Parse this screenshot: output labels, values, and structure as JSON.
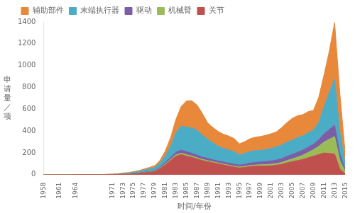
{
  "chart_data": {
    "type": "area",
    "stacked": true,
    "xlabel": "时间/年份",
    "ylabel": "申\n请\n量\n／\n项",
    "x": [
      1958,
      1959,
      1960,
      1961,
      1962,
      1963,
      1964,
      1965,
      1966,
      1967,
      1968,
      1969,
      1970,
      1971,
      1972,
      1973,
      1974,
      1975,
      1976,
      1977,
      1978,
      1979,
      1980,
      1981,
      1982,
      1983,
      1984,
      1985,
      1986,
      1987,
      1988,
      1989,
      1990,
      1991,
      1992,
      1993,
      1994,
      1995,
      1996,
      1997,
      1998,
      1999,
      2000,
      2001,
      2002,
      2003,
      2004,
      2005,
      2006,
      2007,
      2008,
      2009,
      2010,
      2011,
      2012,
      2013,
      2014,
      2015
    ],
    "series": [
      {
        "name": "关节",
        "color": "#C0504D",
        "values": [
          0,
          0,
          0,
          0,
          0,
          0,
          1,
          1,
          1,
          1,
          1,
          1,
          2,
          2,
          3,
          4,
          5,
          8,
          12,
          18,
          22,
          28,
          55,
          90,
          130,
          170,
          185,
          170,
          160,
          145,
          130,
          120,
          110,
          100,
          90,
          80,
          70,
          62,
          68,
          75,
          78,
          80,
          80,
          82,
          88,
          95,
          110,
          120,
          130,
          140,
          155,
          170,
          185,
          200,
          195,
          190,
          50,
          10
        ]
      },
      {
        "name": "机械臂",
        "color": "#9BBB59",
        "values": [
          0,
          0,
          0,
          0,
          0,
          0,
          0,
          0,
          0,
          0,
          0,
          0,
          0,
          0,
          0,
          1,
          1,
          1,
          1,
          2,
          2,
          3,
          4,
          8,
          10,
          12,
          13,
          13,
          12,
          11,
          10,
          10,
          9,
          8,
          8,
          8,
          8,
          8,
          9,
          10,
          11,
          12,
          13,
          14,
          15,
          17,
          20,
          25,
          32,
          40,
          50,
          60,
          75,
          100,
          130,
          160,
          80,
          20
        ]
      },
      {
        "name": "驱动",
        "color": "#7B5EA7",
        "values": [
          0,
          0,
          0,
          0,
          0,
          0,
          0,
          0,
          0,
          0,
          0,
          0,
          0,
          0,
          0,
          1,
          1,
          2,
          2,
          3,
          4,
          5,
          8,
          15,
          20,
          25,
          28,
          28,
          26,
          24,
          22,
          20,
          19,
          18,
          18,
          18,
          19,
          19,
          20,
          22,
          24,
          26,
          28,
          30,
          32,
          35,
          38,
          42,
          44,
          46,
          48,
          50,
          60,
          75,
          90,
          105,
          60,
          20
        ]
      },
      {
        "name": "末端执行器",
        "color": "#4BACC6",
        "values": [
          0,
          0,
          0,
          0,
          0,
          0,
          0,
          0,
          0,
          0,
          0,
          1,
          1,
          2,
          3,
          5,
          8,
          12,
          15,
          20,
          25,
          30,
          40,
          60,
          100,
          180,
          220,
          225,
          230,
          228,
          200,
          175,
          155,
          135,
          125,
          120,
          115,
          92,
          98,
          105,
          108,
          105,
          110,
          115,
          120,
          125,
          130,
          130,
          135,
          130,
          130,
          130,
          160,
          250,
          340,
          420,
          200,
          50
        ]
      },
      {
        "name": "辅助部件",
        "color": "#E8883A",
        "values": [
          0,
          0,
          0,
          0,
          0,
          0,
          0,
          0,
          0,
          0,
          0,
          0,
          1,
          2,
          3,
          4,
          5,
          6,
          8,
          10,
          14,
          18,
          25,
          45,
          80,
          120,
          180,
          240,
          250,
          230,
          200,
          150,
          140,
          135,
          130,
          128,
          120,
          102,
          108,
          118,
          122,
          128,
          130,
          135,
          138,
          160,
          180,
          200,
          200,
          195,
          195,
          180,
          230,
          290,
          380,
          520,
          350,
          100
        ]
      }
    ],
    "xlim": [
      1958,
      2015
    ],
    "xticks": [
      1958,
      1961,
      1964,
      1971,
      1973,
      1975,
      1977,
      1979,
      1981,
      1983,
      1985,
      1987,
      1989,
      1991,
      1993,
      1995,
      1997,
      1999,
      2001,
      2003,
      2005,
      2007,
      2009,
      2011,
      2013,
      2015
    ],
    "ylim": [
      0,
      1400
    ],
    "yticks": [
      0,
      200,
      400,
      600,
      800,
      1000,
      1200,
      1400
    ],
    "grid": false,
    "legend": "upper left"
  }
}
